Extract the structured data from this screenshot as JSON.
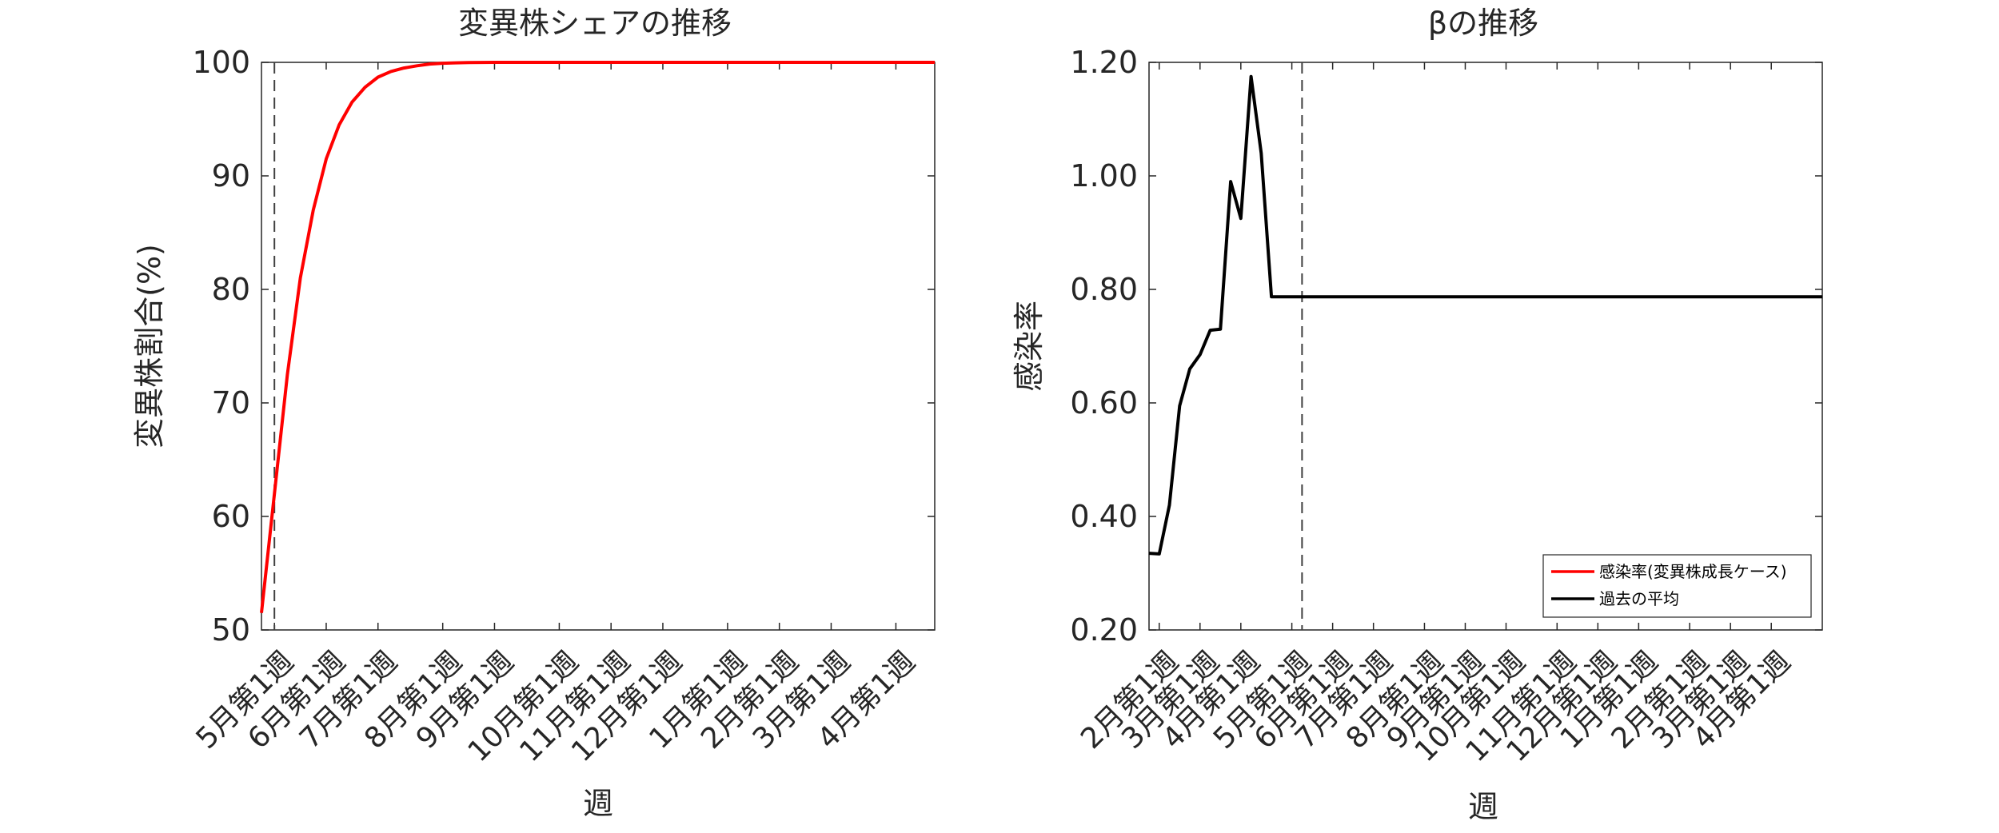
{
  "chart_data": [
    {
      "type": "line",
      "title": "変異株シェアの推移",
      "xlabel": "週",
      "ylabel": "変異株割合(%)",
      "ylim": [
        50,
        100
      ],
      "yticks": [
        "50",
        "60",
        "70",
        "80",
        "90",
        "100"
      ],
      "xticks": [
        "5月第1週",
        "6月第1週",
        "7月第1週",
        "8月第1週",
        "9月第1週",
        "10月第1週",
        "11月第1週",
        "12月第1週",
        "1月第1週",
        "2月第1週",
        "3月第1週",
        "4月第1週"
      ],
      "xtick_weeks": [
        2,
        6,
        10,
        15,
        19,
        24,
        28,
        32,
        37,
        41,
        45,
        50
      ],
      "xlim_weeks": [
        1,
        53
      ],
      "vline_week": 2,
      "grid": false,
      "series": [
        {
          "color": "#ff0000",
          "x": [
            1,
            2,
            3,
            4,
            5,
            6,
            7,
            8,
            9,
            10,
            11,
            12,
            13,
            14,
            15,
            16,
            17,
            18,
            19,
            20,
            21,
            22,
            23,
            24,
            25,
            26,
            27,
            28,
            29,
            30,
            31,
            32,
            33,
            34,
            35,
            36,
            37,
            38,
            39,
            40,
            41,
            42,
            43,
            44,
            45,
            46,
            47,
            48,
            49,
            50,
            51,
            52,
            53
          ],
          "values": [
            51.5,
            62,
            72.5,
            81,
            87,
            91.5,
            94.5,
            96.5,
            97.8,
            98.7,
            99.2,
            99.5,
            99.7,
            99.85,
            99.92,
            99.96,
            99.98,
            99.99,
            100,
            100,
            100,
            100,
            100,
            100,
            100,
            100,
            100,
            100,
            100,
            100,
            100,
            100,
            100,
            100,
            100,
            100,
            100,
            100,
            100,
            100,
            100,
            100,
            100,
            100,
            100,
            100,
            100,
            100,
            100,
            100,
            100,
            100,
            100
          ]
        }
      ]
    },
    {
      "type": "line",
      "title": "βの推移",
      "xlabel": "週",
      "ylabel": "感染率",
      "ylim": [
        0.2,
        1.2
      ],
      "yticks": [
        "0.20",
        "0.40",
        "0.60",
        "0.80",
        "1.00",
        "1.20"
      ],
      "xticks": [
        "2月第1週",
        "3月第1週",
        "4月第1週",
        "5月第1週",
        "6月第1週",
        "7月第1週",
        "8月第1週",
        "9月第1週",
        "10月第1週",
        "11月第1週",
        "12月第1週",
        "1月第1週",
        "2月第1週",
        "3月第1週",
        "4月第1週"
      ],
      "xtick_weeks": [
        1,
        5,
        9,
        14,
        18,
        22,
        27,
        31,
        35,
        40,
        44,
        48,
        53,
        57,
        61
      ],
      "xlim_weeks": [
        0,
        66
      ],
      "vline_week": 15,
      "grid": false,
      "legend_position": "bottom-right",
      "legend": [
        {
          "label": "感染率(変異株成長ケース)",
          "color": "#ff0000"
        },
        {
          "label": "過去の平均",
          "color": "#000000"
        }
      ],
      "series": [
        {
          "color": "#000000",
          "x": [
            0,
            1,
            2,
            3,
            4,
            5,
            6,
            7,
            8,
            9,
            10,
            11,
            12,
            13,
            14,
            15,
            16,
            20,
            30,
            40,
            50,
            60,
            66
          ],
          "values": [
            0.335,
            0.334,
            0.42,
            0.595,
            0.66,
            0.685,
            0.728,
            0.73,
            0.99,
            0.925,
            1.175,
            1.04,
            0.787,
            0.787,
            0.787,
            0.787,
            0.787,
            0.787,
            0.787,
            0.787,
            0.787,
            0.787,
            0.787
          ]
        }
      ]
    }
  ]
}
